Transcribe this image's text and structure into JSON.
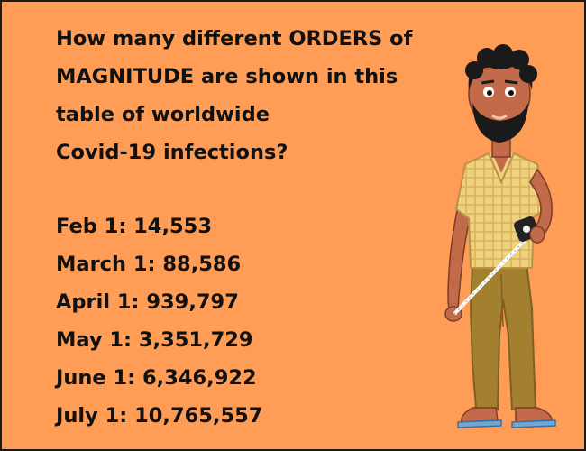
{
  "question_lines": [
    "How many different ORDERS of",
    "MAGNITUDE are shown in this",
    "table of worldwide",
    "Covid-19 infections?"
  ],
  "infections": [
    {
      "label": "Feb 1:",
      "value": "14,553"
    },
    {
      "label": "March 1:",
      "value": "88,586"
    },
    {
      "label": "April 1:",
      "value": "939,797"
    },
    {
      "label": "May 1:",
      "value": "3,351,729"
    },
    {
      "label": "June 1:",
      "value": "6,346,922"
    },
    {
      "label": "July 1:",
      "value": "10,765,557"
    }
  ],
  "colors": {
    "background": "#FF9C55",
    "text": "#111111",
    "skin": "#C26A4A",
    "hair": "#1A1A1A",
    "shirt": "#EFD27E",
    "pants": "#A3802F",
    "sandals": "#6FA8D8"
  },
  "illustration": "man-holding-measuring-tape"
}
